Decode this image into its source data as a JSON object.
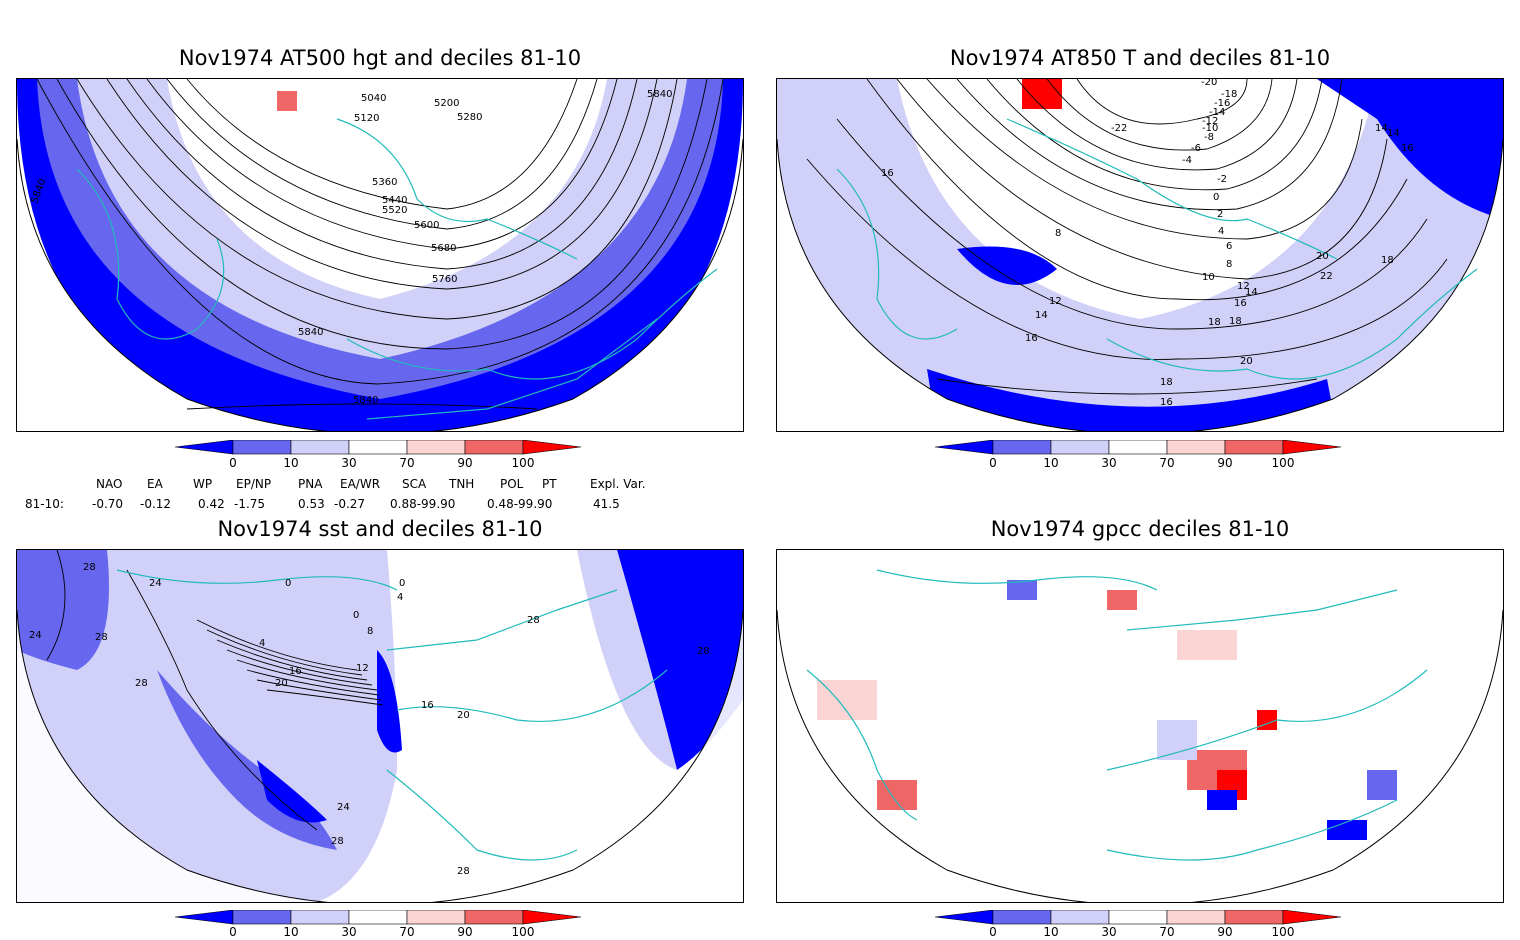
{
  "panels": [
    {
      "id": "p1",
      "title": "Nov1974 AT500 hgt and deciles 81-10",
      "contour_labels": [
        "5040",
        "5200",
        "5120",
        "5280",
        "5840",
        "5360",
        "5440",
        "5520",
        "5600",
        "5680",
        "5760",
        "5840",
        "5840",
        "5840"
      ]
    },
    {
      "id": "p2",
      "title": "Nov1974 AT850 T and deciles 81-10",
      "contour_labels": [
        "-20",
        "-18",
        "-16",
        "-14",
        "-12",
        "-10",
        "-22",
        "-8",
        "-6",
        "-4",
        "-2",
        "0",
        "2",
        "4",
        "6",
        "8",
        "8",
        "10",
        "12",
        "14",
        "16",
        "18",
        "20",
        "22",
        "14",
        "14",
        "16",
        "18",
        "16",
        "12",
        "14",
        "16",
        "18",
        "20",
        "18",
        "16"
      ]
    },
    {
      "id": "p3",
      "title": "Nov1974 sst and deciles 81-10",
      "contour_labels": [
        "28",
        "24",
        "0",
        "0",
        "4",
        "0",
        "8",
        "28",
        "24",
        "28",
        "28",
        "4",
        "16",
        "12",
        "20",
        "16",
        "20",
        "24",
        "28",
        "28",
        "28"
      ]
    },
    {
      "id": "p4",
      "title": "Nov1974 gpcc deciles 81-10",
      "contour_labels": []
    }
  ],
  "colorbar": {
    "labels": [
      "0",
      "10",
      "30",
      "70",
      "90",
      "100"
    ],
    "colors": [
      "#0000ff",
      "#6666ee",
      "#d0d0f8",
      "#ffffff",
      "#fbd4d4",
      "#ee6666",
      "#ff0000"
    ]
  },
  "indices": {
    "headers": [
      "NAO",
      "EA",
      "WP",
      "EP/NP",
      "PNA",
      "EA/WR",
      "SCA",
      "TNH",
      "POL",
      "PT",
      "Expl. Var."
    ],
    "row_label": "81-10:",
    "values": [
      "-0.70",
      "-0.12",
      "0.42",
      "-1.75",
      "0.53",
      "-0.27",
      "0.88-99.90",
      "0.48-99.90",
      "41.5"
    ]
  }
}
